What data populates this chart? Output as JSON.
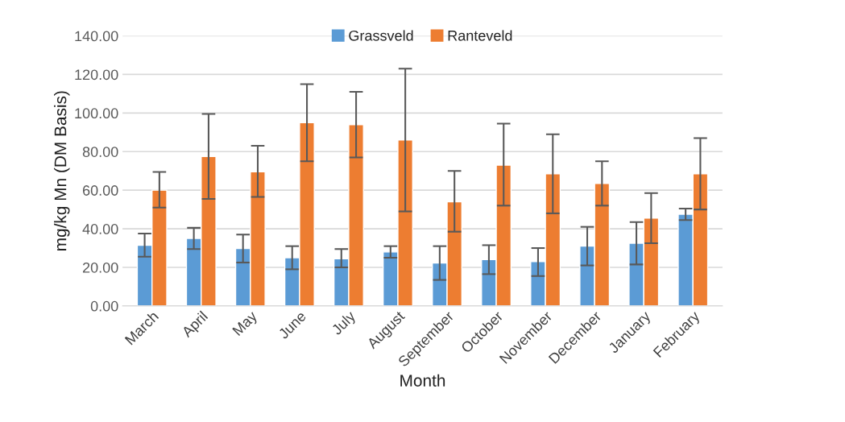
{
  "chart_data": {
    "type": "bar",
    "categories": [
      "March",
      "April",
      "May",
      "June",
      "July",
      "August",
      "September",
      "October",
      "November",
      "December",
      "January",
      "February"
    ],
    "series": [
      {
        "name": "Grassveld",
        "color": "#5b9bd5",
        "values": [
          31.5,
          35,
          29.8,
          25,
          24.5,
          28,
          22.3,
          24,
          23,
          31,
          32.5,
          47.5
        ],
        "errors": [
          [
            25.5,
            37.5
          ],
          [
            29.5,
            40.5
          ],
          [
            22.5,
            37
          ],
          [
            19,
            31
          ],
          [
            20,
            29.5
          ],
          [
            25,
            31
          ],
          [
            13.5,
            31
          ],
          [
            16.5,
            31.5
          ],
          [
            15.5,
            30
          ],
          [
            21,
            41
          ],
          [
            21.5,
            43.5
          ],
          [
            44.5,
            50.5
          ]
        ]
      },
      {
        "name": "Ranteveld",
        "color": "#ed7d31",
        "values": [
          60,
          77.5,
          69.5,
          95,
          94,
          86,
          54,
          73,
          68.5,
          63.5,
          45.5,
          68.5
        ],
        "errors": [
          [
            51,
            69.5
          ],
          [
            55.5,
            99.5
          ],
          [
            56.5,
            83
          ],
          [
            75,
            115
          ],
          [
            77,
            111
          ],
          [
            49,
            123
          ],
          [
            38.5,
            70
          ],
          [
            52,
            94.5
          ],
          [
            48,
            89
          ],
          [
            52,
            75
          ],
          [
            32.5,
            58.5
          ],
          [
            50,
            87
          ]
        ]
      }
    ],
    "xlabel": "Month",
    "ylabel": "mg/kg Mn (DM Basis)",
    "ylim": [
      0,
      140
    ],
    "yticks": [
      {
        "value": 0,
        "label": "0.00"
      },
      {
        "value": 20,
        "label": "20.00"
      },
      {
        "value": 40,
        "label": "40.00"
      },
      {
        "value": 60,
        "label": "60.00"
      },
      {
        "value": 80,
        "label": "80.00"
      },
      {
        "value": 100,
        "label": "100.00"
      },
      {
        "value": 120,
        "label": "120.00"
      },
      {
        "value": 140,
        "label": "140.00"
      }
    ],
    "grid": "y",
    "legend": "top"
  }
}
